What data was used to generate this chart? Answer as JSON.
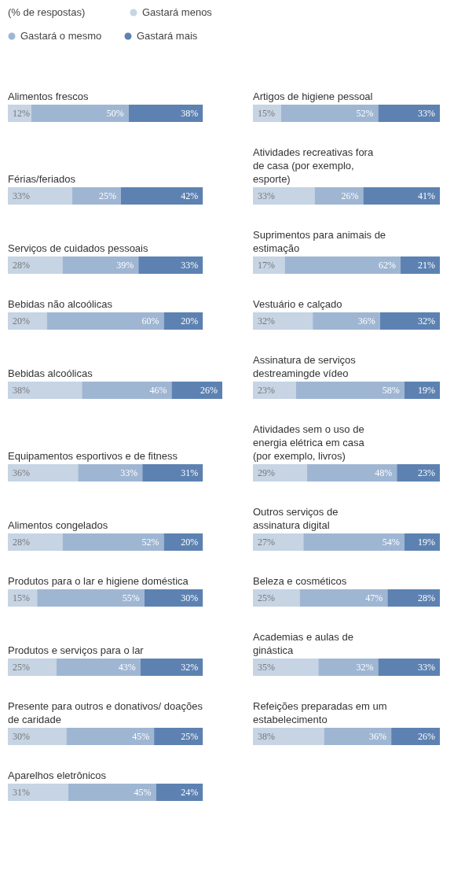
{
  "chart_data": [
    {
      "type": "bar",
      "orientation": "horizontal",
      "stacked": true,
      "subtitle": "(% de respostas)",
      "legend": "top",
      "categories": [
        "Alimentos frescos",
        "Férias/feriados",
        "Serviços de cuidados pessoais",
        "Bebidas não alcoólicas",
        "Bebidas alcoólicas",
        "Equipamentos esportivos e de fitness",
        "Alimentos congelados",
        "Produtos para o lar e higiene doméstica",
        "Produtos e serviços para o lar",
        "Presente para outros e donativos/ doações de caridade",
        "Aparelhos eletrônicos"
      ],
      "series": [
        {
          "name": "Gastará menos",
          "color": "#c6d4e4",
          "values": [
            12,
            33,
            28,
            20,
            38,
            36,
            28,
            15,
            25,
            30,
            31
          ],
          "value_labels": [
            "12%",
            "33%",
            "28%",
            "20%",
            "38%",
            "36%",
            "28%",
            "15%",
            "25%",
            "30%",
            "31%"
          ]
        },
        {
          "name": "Gastará o mesmo",
          "color": "#9fb6d3",
          "values": [
            50,
            25,
            39,
            60,
            46,
            33,
            52,
            55,
            43,
            45,
            45
          ],
          "value_labels": [
            "50%",
            "25%",
            "39%",
            "60%",
            "46%",
            "33%",
            "52%",
            "55%",
            "43%",
            "45%",
            "45%"
          ]
        },
        {
          "name": "Gastará mais",
          "color": "#5d82b2",
          "values": [
            38,
            42,
            33,
            20,
            26,
            31,
            20,
            30,
            32,
            25,
            24
          ],
          "value_labels": [
            "38%",
            "42%",
            "33%",
            "20%",
            "26%",
            "31%",
            "20%",
            "30%",
            "32%",
            "25%",
            "24%"
          ]
        }
      ]
    },
    {
      "type": "bar",
      "orientation": "horizontal",
      "stacked": true,
      "categories": [
        "Artigos de higiene pessoal",
        "Atividades recreativas fora de casa (por exemplo, esporte)",
        "Suprimentos para animais de estimação",
        "Vestuário e calçado",
        "Assinatura de serviços destreamingde vídeo",
        "Atividades sem o uso de energia elétrica em casa (por exemplo, livros)",
        "Outros serviços de assinatura digital",
        "Beleza e cosméticos",
        "Academias e aulas de ginástica",
        "Refeições preparadas em um estabelecimento"
      ],
      "series": [
        {
          "color": "#c6d4e4",
          "values": [
            15,
            33,
            17,
            32,
            23,
            29,
            27,
            25,
            35,
            38
          ],
          "value_labels": [
            "15%",
            "33%",
            "17%",
            "32%",
            "23%",
            "29%",
            "27%",
            "25%",
            "35%",
            "38%"
          ]
        },
        {
          "color": "#9fb6d3",
          "values": [
            52,
            26,
            62,
            36,
            58,
            48,
            54,
            47,
            32,
            36
          ],
          "value_labels": [
            "52%",
            "26%",
            "62%",
            "36%",
            "58%",
            "48%",
            "54%",
            "47%",
            "32%",
            "36%"
          ]
        },
        {
          "color": "#5d82b2",
          "values": [
            33,
            41,
            21,
            32,
            19,
            23,
            19,
            28,
            33,
            26
          ],
          "value_labels": [
            "33%",
            "41%",
            "21%",
            "32%",
            "19%",
            "23%",
            "19%",
            "28%",
            "33%",
            "26%"
          ]
        }
      ]
    }
  ]
}
